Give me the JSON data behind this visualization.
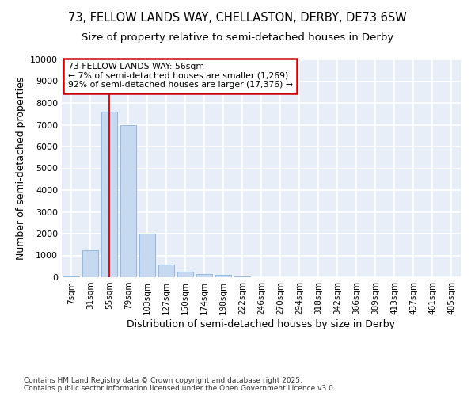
{
  "title_line1": "73, FELLOW LANDS WAY, CHELLASTON, DERBY, DE73 6SW",
  "title_line2": "Size of property relative to semi-detached houses in Derby",
  "xlabel": "Distribution of semi-detached houses by size in Derby",
  "ylabel": "Number of semi-detached properties",
  "categories": [
    "7sqm",
    "31sqm",
    "55sqm",
    "79sqm",
    "103sqm",
    "127sqm",
    "150sqm",
    "174sqm",
    "198sqm",
    "222sqm",
    "246sqm",
    "270sqm",
    "294sqm",
    "318sqm",
    "342sqm",
    "366sqm",
    "389sqm",
    "413sqm",
    "437sqm",
    "461sqm",
    "485sqm"
  ],
  "values": [
    50,
    1250,
    7600,
    7000,
    2000,
    600,
    250,
    150,
    100,
    50,
    0,
    0,
    0,
    0,
    0,
    0,
    0,
    0,
    0,
    0,
    0
  ],
  "bar_color": "#c6d9f0",
  "bar_edge_color": "#8ab0d4",
  "highlight_bar_index": 2,
  "highlight_line_color": "#cc0000",
  "annotation_text": "73 FELLOW LANDS WAY: 56sqm\n← 7% of semi-detached houses are smaller (1,269)\n92% of semi-detached houses are larger (17,376) →",
  "annotation_box_color": "#ffffff",
  "annotation_box_edge_color": "#cc0000",
  "ylim": [
    0,
    10000
  ],
  "yticks": [
    0,
    1000,
    2000,
    3000,
    4000,
    5000,
    6000,
    7000,
    8000,
    9000,
    10000
  ],
  "background_color": "#e8eef8",
  "footer_text": "Contains HM Land Registry data © Crown copyright and database right 2025.\nContains public sector information licensed under the Open Government Licence v3.0.",
  "grid_color": "#ffffff",
  "title_fontsize": 10.5,
  "subtitle_fontsize": 9.5,
  "tick_fontsize": 7.5,
  "label_fontsize": 9,
  "footer_fontsize": 6.5
}
